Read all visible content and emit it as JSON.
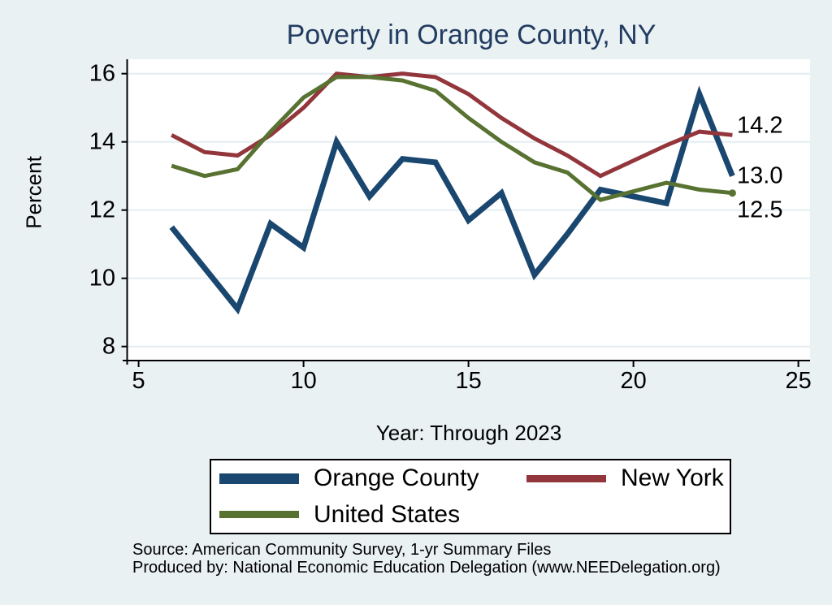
{
  "title": "Poverty in Orange County, NY",
  "y_axis": {
    "label": "Percent",
    "ticks": [
      8,
      10,
      12,
      14,
      16
    ]
  },
  "x_axis": {
    "label": "Year: Through 2023",
    "ticks": [
      5,
      10,
      15,
      20,
      25
    ]
  },
  "chart_data": {
    "type": "line",
    "title": "Poverty in Orange County, NY",
    "xlabel": "Year: Through 2023",
    "ylabel": "Percent",
    "xlim": [
      5,
      25
    ],
    "ylim": [
      8,
      16
    ],
    "grid": "horizontal",
    "legend_position": "bottom",
    "x": [
      6,
      7,
      8,
      9,
      10,
      11,
      12,
      13,
      14,
      15,
      16,
      17,
      18,
      19,
      21,
      22,
      23
    ],
    "series": [
      {
        "name": "Orange County",
        "color": "#1a476f",
        "line_width": 7,
        "values": [
          11.5,
          10.3,
          9.1,
          11.6,
          10.9,
          14.0,
          12.4,
          13.5,
          13.4,
          11.7,
          12.5,
          10.1,
          11.3,
          12.6,
          12.2,
          15.4,
          13.0
        ],
        "end_label": "13.0",
        "end_marker": false
      },
      {
        "name": "New York",
        "color": "#92363c",
        "line_width": 5,
        "values": [
          14.2,
          13.7,
          13.6,
          14.2,
          15.0,
          16.0,
          15.9,
          16.0,
          15.9,
          15.4,
          14.7,
          14.1,
          13.6,
          13.0,
          13.9,
          14.3,
          14.2
        ],
        "end_label": "14.2",
        "end_marker": false
      },
      {
        "name": "United States",
        "color": "#587231",
        "line_width": 5,
        "values": [
          13.3,
          13.0,
          13.2,
          14.3,
          15.3,
          15.9,
          15.9,
          15.8,
          15.5,
          14.7,
          14.0,
          13.4,
          13.1,
          12.3,
          12.8,
          12.6,
          12.5
        ],
        "end_label": "12.5",
        "end_marker": true
      }
    ]
  },
  "legend": {
    "items": [
      {
        "label": "Orange County",
        "color": "#1a476f"
      },
      {
        "label": "New York",
        "color": "#92363c"
      },
      {
        "label": "United States",
        "color": "#587231"
      }
    ]
  },
  "footer": {
    "source_line": "Source: American Community Survey, 1-yr Summary Files",
    "produced_line": "Produced by: National Economic Education Delegation (www.NEEDelegation.org)"
  },
  "colors": {
    "background": "#eaf1f3",
    "plot_background": "#ffffff",
    "gridline": "#e4eef2",
    "axis": "#000000",
    "title": "#223c61"
  }
}
